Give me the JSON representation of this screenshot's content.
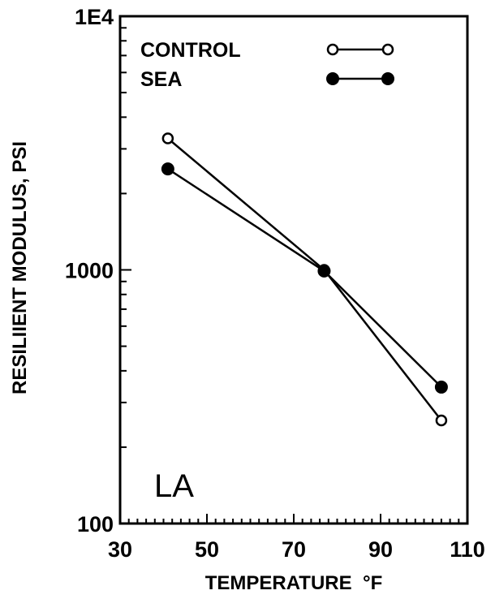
{
  "chart_data": {
    "type": "line",
    "title": "",
    "xlabel": "TEMPERATURE  °F",
    "ylabel": "RESILIIENT MODULUS, PSI",
    "xlim": [
      30,
      110
    ],
    "ylim": [
      100,
      10000
    ],
    "yscale": "log",
    "grid": false,
    "legend_position": "top-right",
    "x_ticks": [
      30,
      50,
      70,
      90,
      110
    ],
    "x_tick_labels": [
      "30",
      "50",
      "70",
      "90",
      "110"
    ],
    "y_ticks": [
      100,
      1000,
      10000
    ],
    "y_tick_labels": [
      "100",
      "1000",
      "1E4"
    ],
    "annotation": "LA",
    "series": [
      {
        "name": "CONTROL",
        "marker": "open-circle",
        "x": [
          41,
          77,
          104
        ],
        "y": [
          3300,
          1000,
          255
        ]
      },
      {
        "name": "SEA",
        "marker": "filled-circle",
        "x": [
          41,
          77,
          104
        ],
        "y": [
          2500,
          990,
          345
        ]
      }
    ]
  }
}
